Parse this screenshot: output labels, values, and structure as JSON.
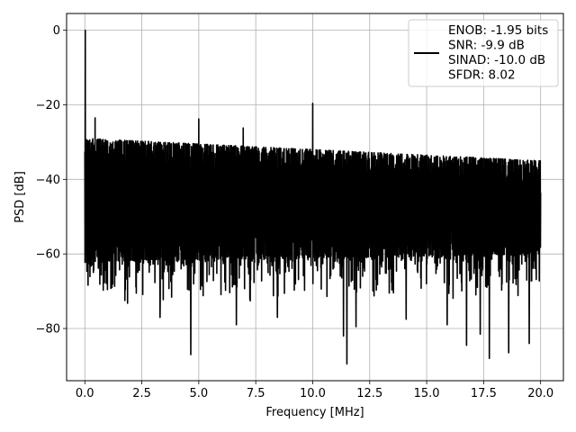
{
  "chart_data": {
    "type": "line",
    "title": "",
    "xlabel": "Frequency [MHz]",
    "ylabel": "PSD [dB]",
    "xlim": [
      -0.8,
      21.0
    ],
    "ylim": [
      -94,
      4.5
    ],
    "xticks": [
      0.0,
      2.5,
      5.0,
      7.5,
      10.0,
      12.5,
      15.0,
      17.5,
      20.0
    ],
    "xtick_labels": [
      "0.0",
      "2.5",
      "5.0",
      "7.5",
      "10.0",
      "12.5",
      "15.0",
      "17.5",
      "20.0"
    ],
    "yticks": [
      0,
      -20,
      -40,
      -60,
      -80
    ],
    "ytick_labels": [
      "0",
      "−20",
      "−40",
      "−60",
      "−80"
    ],
    "grid": true,
    "legend_position": "top-right",
    "series_color": "#000000",
    "noise_envelope": {
      "x_range": [
        0.0,
        20.0
      ],
      "upper_start": -29.0,
      "upper_end": -35.0,
      "lower_start": -62.0,
      "lower_end": -60.0
    },
    "peaks": [
      {
        "x": 0.02,
        "y": 0.0
      },
      {
        "x": 10.0,
        "y": -19.6
      },
      {
        "x": 5.0,
        "y": -23.8
      },
      {
        "x": 0.45,
        "y": -23.5
      },
      {
        "x": 6.95,
        "y": -26.2
      }
    ],
    "dips": [
      {
        "x": 4.65,
        "y": -87.0
      },
      {
        "x": 11.5,
        "y": -89.5
      },
      {
        "x": 17.75,
        "y": -88.0
      },
      {
        "x": 18.6,
        "y": -86.5
      },
      {
        "x": 11.35,
        "y": -82.0
      },
      {
        "x": 16.75,
        "y": -84.5
      },
      {
        "x": 19.5,
        "y": -84.0
      },
      {
        "x": 17.35,
        "y": -81.5
      },
      {
        "x": 11.9,
        "y": -79.5
      },
      {
        "x": 6.65,
        "y": -79.0
      },
      {
        "x": 3.3,
        "y": -77.0
      },
      {
        "x": 14.1,
        "y": -77.5
      },
      {
        "x": 8.45,
        "y": -77.0
      },
      {
        "x": 15.9,
        "y": -79.0
      }
    ],
    "series": [
      {
        "legend_lines": [
          "ENOB: -1.95 bits",
          "SNR: -9.9 dB",
          "SINAD: -10.0 dB",
          "SFDR: 8.02"
        ]
      }
    ]
  }
}
